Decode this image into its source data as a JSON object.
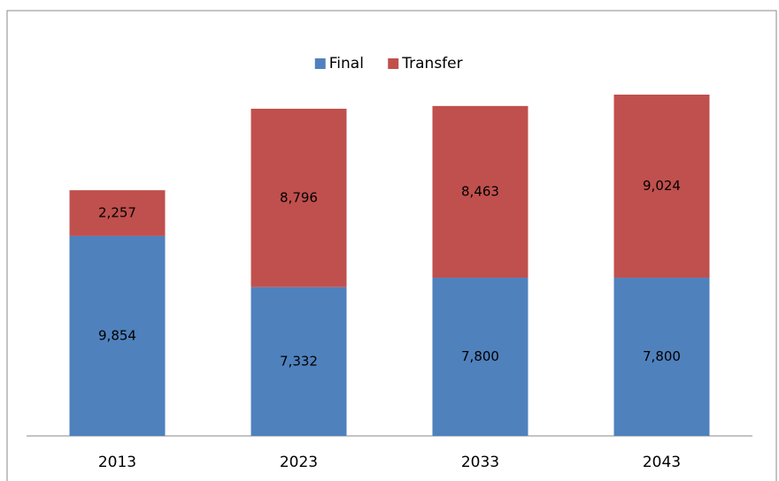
{
  "chart_data": {
    "type": "stacked-bar",
    "categories": [
      "2013",
      "2023",
      "2033",
      "2043"
    ],
    "series": [
      {
        "name": "Final",
        "color": "#4f81bd",
        "values": [
          9854,
          7332,
          7800,
          7800
        ],
        "value_labels": [
          "9,854",
          "7,332",
          "7,800",
          "7,800"
        ]
      },
      {
        "name": "Transfer",
        "color": "#c0504d",
        "values": [
          2257,
          8796,
          8463,
          9024
        ],
        "value_labels": [
          "2,257",
          "8,796",
          "8,463",
          "9,024"
        ]
      }
    ],
    "legend": "top"
  }
}
